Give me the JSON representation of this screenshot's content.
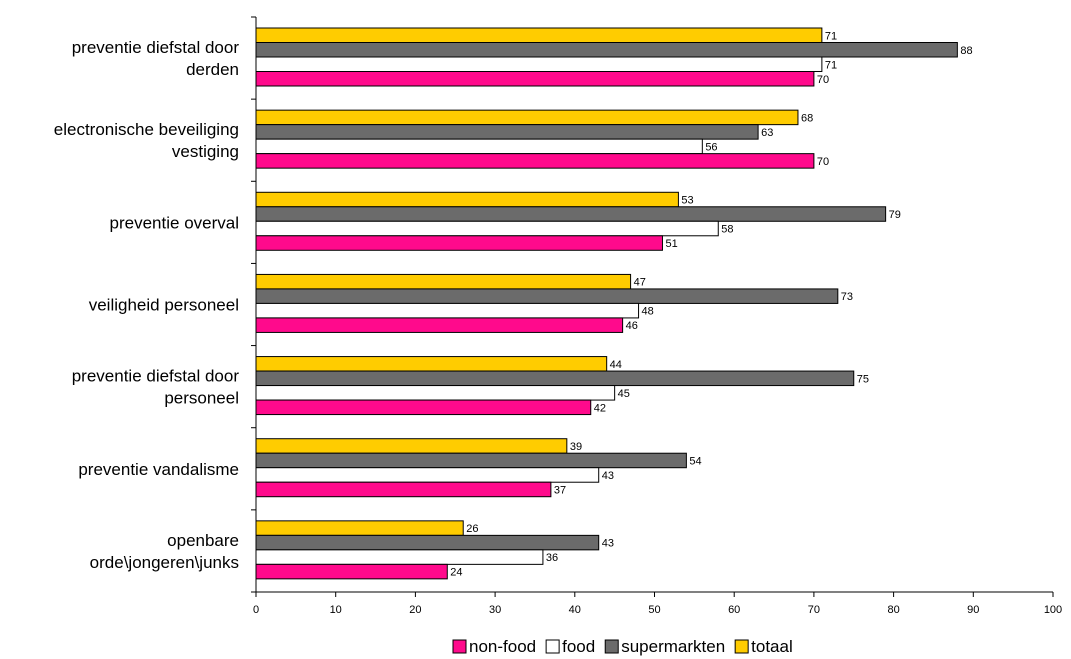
{
  "chart_data": {
    "type": "bar",
    "orientation": "horizontal",
    "categories": [
      [
        "preventie diefstal door",
        "derden"
      ],
      [
        "electronische beveiliging",
        "vestiging"
      ],
      [
        "preventie overval"
      ],
      [
        "veiligheid personeel"
      ],
      [
        "preventie diefstal door",
        "personeel"
      ],
      [
        "preventie vandalisme"
      ],
      [
        "openbare",
        "orde\\jongeren\\junks"
      ]
    ],
    "series": [
      {
        "name": "totaal",
        "color": "#ffcc00",
        "values": [
          71,
          68,
          53,
          47,
          44,
          39,
          26
        ]
      },
      {
        "name": "supermarkten",
        "color": "#6b6b6b",
        "values": [
          88,
          63,
          79,
          73,
          75,
          54,
          43
        ]
      },
      {
        "name": "food",
        "color": "#ffffff",
        "values": [
          71,
          56,
          58,
          48,
          45,
          43,
          36
        ]
      },
      {
        "name": "non-food",
        "color": "#ff0a8c",
        "values": [
          70,
          70,
          51,
          46,
          42,
          37,
          24
        ]
      }
    ],
    "xlim": [
      0,
      100
    ],
    "xticks": [
      0,
      10,
      20,
      30,
      40,
      50,
      60,
      70,
      80,
      90,
      100
    ],
    "grid": false,
    "legend_position": "bottom",
    "legend_order": [
      "non-food",
      "food",
      "supermarkten",
      "totaal"
    ],
    "title": "",
    "xlabel": "",
    "ylabel": ""
  }
}
